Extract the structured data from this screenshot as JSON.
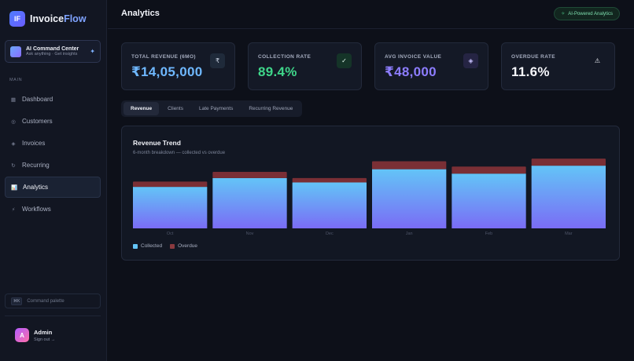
{
  "app": {
    "logo_mark": "IF",
    "name_part1": "Invoice",
    "name_part2": "Flow"
  },
  "ai_card": {
    "title": "AI Command Center",
    "subtitle": "Ask anything · Get insights",
    "spark": "✦"
  },
  "sidebar": {
    "section_label": "MAIN",
    "items": [
      {
        "label": "Dashboard",
        "icon": "▦",
        "icon_name": "grid-icon"
      },
      {
        "label": "Customers",
        "icon": "◎",
        "icon_name": "customers-icon"
      },
      {
        "label": "Invoices",
        "icon": "◈",
        "icon_name": "invoice-icon"
      },
      {
        "label": "Recurring",
        "icon": "↻",
        "icon_name": "recurring-icon"
      },
      {
        "label": "Analytics",
        "icon": "📊",
        "icon_name": "chart-icon",
        "active": true
      },
      {
        "label": "Workflows",
        "icon": "⚡",
        "icon_name": "lightning-icon"
      }
    ],
    "command": {
      "kbd": "⌘K",
      "label": "Command palette"
    },
    "user": {
      "initial": "A",
      "name": "Admin",
      "action": "Sign out →"
    }
  },
  "header": {
    "title": "Analytics",
    "badge_dot": "✧",
    "badge": "AI-Powered Analytics"
  },
  "kpis": [
    {
      "label": "TOTAL REVENUE (6MO)",
      "value": "₹14,05,000",
      "icon": "₹",
      "color": "#6fb8ff"
    },
    {
      "label": "COLLECTION RATE",
      "value": "89.4%",
      "icon": "✓",
      "color": "#3fd68a"
    },
    {
      "label": "AVG INVOICE VALUE",
      "value": "₹48,000",
      "icon": "◈",
      "color": "#8d7dff"
    },
    {
      "label": "OVERDUE RATE",
      "value": "11.6%",
      "icon": "⚠",
      "color": "#f4f5f9"
    }
  ],
  "tabs": [
    "Revenue",
    "Clients",
    "Late Payments",
    "Recurring Revenue"
  ],
  "chart": {
    "title": "Revenue Trend",
    "subtitle": "6-month breakdown — collected vs overdue",
    "legend": {
      "collected": "Collected",
      "overdue": "Overdue"
    }
  },
  "chart_data": {
    "type": "bar",
    "stacked": true,
    "categories": [
      "Oct",
      "Nov",
      "Dec",
      "Jan",
      "Feb",
      "Mar"
    ],
    "series": [
      {
        "name": "Collected",
        "values": [
          47,
          57,
          52,
          67,
          62,
          71
        ],
        "color": "#6fb8ff"
      },
      {
        "name": "Overdue",
        "values": [
          6,
          7,
          5,
          9,
          8,
          8
        ],
        "color": "#7a2f35"
      }
    ],
    "ylim": [
      0,
      80
    ],
    "grid": false,
    "legend": "bottom-left"
  }
}
